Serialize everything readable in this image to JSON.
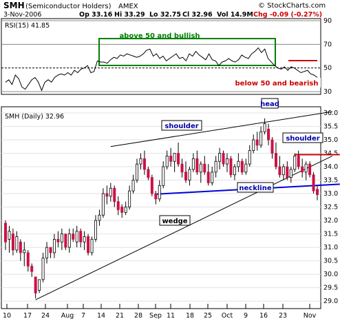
{
  "header": {
    "symbol": "SMH",
    "name": "(Semiconductor Holders)",
    "exchange": "AMEX",
    "copyright": "© StockCharts.com",
    "date": "3-Nov-2006",
    "open": "Op 33.16",
    "high": "Hi 33.29",
    "low": "Lo 32.75",
    "close": "Cl 32.96",
    "volume": "Vol 14.9M",
    "change": "Chg -0.09 (-0.27%)",
    "change_color": "#cc0000"
  },
  "rsi_panel": {
    "label": "RSI(15) 41.85",
    "y_ticks": [
      "90",
      "70",
      "50",
      "30"
    ],
    "bullish_note": "above 50 and bullish",
    "bearish_note": "below 50 and bearish",
    "box_color": "#008000",
    "bearish_color": "#cc0000"
  },
  "price_panel": {
    "label": "SMH (Daily) 32.96",
    "y_ticks": [
      "36.0",
      "35.5",
      "35.0",
      "34.5",
      "34.0",
      "33.5",
      "33.0",
      "32.5",
      "32.0",
      "31.5",
      "31.0",
      "30.5",
      "30.0",
      "29.5",
      "29.0"
    ],
    "annotations": {
      "head": "head",
      "left_shoulder": "shoulder",
      "right_shoulder": "shoulder",
      "neckline": "neckline",
      "wedge": "wedge"
    },
    "neckline_color": "#0000dd",
    "up_candle_color": "#ffffff",
    "down_candle_color": "#cc1144"
  },
  "x_axis": {
    "labels": [
      "10",
      "17",
      "24",
      "Aug",
      "7",
      "14",
      "21",
      "28",
      "Sep",
      "11",
      "18",
      "25",
      "Oct",
      "9",
      "16",
      "23",
      "Nov"
    ]
  },
  "chart_data": [
    {
      "type": "line",
      "title": "RSI(15) 41.85",
      "ylim": [
        30,
        90
      ],
      "yticks": [
        30,
        50,
        70,
        90
      ],
      "grid": true,
      "values": [
        38,
        40,
        36,
        44,
        41,
        34,
        32,
        36,
        40,
        42,
        38,
        31,
        38,
        40,
        38,
        42,
        44,
        45,
        44,
        46,
        44,
        48,
        46,
        49,
        50,
        52,
        46,
        47,
        56,
        55,
        55,
        54,
        57,
        59,
        58,
        61,
        60,
        62,
        61,
        60,
        59,
        60,
        62,
        65,
        66,
        60,
        62,
        58,
        60,
        56,
        58,
        60,
        62,
        58,
        59,
        56,
        62,
        60,
        64,
        61,
        59,
        57,
        62,
        57,
        56,
        52,
        55,
        56,
        58,
        56,
        55,
        57,
        61,
        59,
        58,
        62,
        64,
        67,
        63,
        66,
        58,
        55,
        52,
        50,
        49,
        51,
        48,
        51,
        50,
        48,
        46,
        47,
        48,
        45,
        44,
        42
      ],
      "annotations": [
        "above 50 and bullish",
        "below 50 and bearish"
      ]
    },
    {
      "type": "candlestick",
      "title": "SMH (Daily) 32.96",
      "ylim": [
        28.9,
        36.0
      ],
      "yticks": [
        29.0,
        29.5,
        30.0,
        30.5,
        31.0,
        31.5,
        32.0,
        32.5,
        33.0,
        33.5,
        34.0,
        34.5,
        35.0,
        35.5,
        36.0
      ],
      "x_labels": [
        "10",
        "17",
        "24",
        "Aug",
        "7",
        "14",
        "21",
        "28",
        "Sep",
        "11",
        "18",
        "25",
        "Oct",
        "9",
        "16",
        "23",
        "Nov"
      ],
      "ohlc": [
        [
          31.9,
          32.0,
          30.9,
          31.2
        ],
        [
          31.3,
          31.8,
          30.8,
          31.6
        ],
        [
          31.5,
          31.7,
          30.7,
          30.9
        ],
        [
          30.9,
          31.6,
          30.8,
          31.4
        ],
        [
          31.2,
          31.3,
          30.5,
          30.8
        ],
        [
          30.8,
          31.2,
          30.3,
          30.9
        ],
        [
          30.8,
          30.9,
          30.1,
          30.3
        ],
        [
          30.3,
          30.4,
          29.9,
          30.1
        ],
        [
          29.9,
          29.9,
          29.1,
          29.3
        ],
        [
          29.4,
          29.8,
          29.3,
          29.8
        ],
        [
          29.8,
          30.8,
          29.7,
          30.6
        ],
        [
          30.6,
          31.2,
          30.4,
          31.0
        ],
        [
          31.0,
          31.0,
          30.6,
          30.8
        ],
        [
          30.8,
          31.5,
          30.6,
          31.3
        ],
        [
          31.3,
          31.6,
          31.0,
          31.2
        ],
        [
          31.2,
          31.7,
          30.9,
          31.5
        ],
        [
          31.5,
          31.5,
          30.9,
          31.0
        ],
        [
          31.0,
          31.7,
          30.8,
          31.5
        ],
        [
          31.5,
          31.7,
          31.2,
          31.3
        ],
        [
          31.2,
          31.8,
          31.0,
          31.6
        ],
        [
          31.6,
          31.7,
          31.0,
          31.2
        ],
        [
          31.2,
          31.6,
          30.9,
          31.4
        ],
        [
          31.4,
          31.5,
          30.7,
          30.8
        ],
        [
          30.8,
          31.4,
          30.7,
          31.3
        ],
        [
          31.3,
          32.2,
          31.2,
          32.0
        ],
        [
          32.0,
          32.4,
          31.8,
          32.2
        ],
        [
          32.2,
          33.2,
          32.1,
          33.0
        ],
        [
          33.0,
          33.3,
          32.6,
          32.9
        ],
        [
          32.9,
          33.4,
          32.7,
          33.2
        ],
        [
          33.2,
          33.3,
          32.5,
          32.7
        ],
        [
          32.7,
          32.9,
          32.2,
          32.4
        ],
        [
          32.5,
          32.6,
          32.1,
          32.3
        ],
        [
          32.3,
          32.7,
          32.2,
          32.5
        ],
        [
          32.5,
          33.3,
          32.4,
          33.1
        ],
        [
          33.1,
          33.7,
          33.0,
          33.5
        ],
        [
          33.5,
          34.3,
          33.4,
          34.1
        ],
        [
          34.1,
          34.5,
          33.9,
          34.3
        ],
        [
          34.3,
          34.6,
          33.7,
          33.9
        ],
        [
          33.9,
          34.0,
          33.5,
          33.6
        ],
        [
          33.6,
          33.7,
          32.9,
          33.0
        ],
        [
          33.0,
          33.1,
          32.6,
          32.8
        ],
        [
          32.8,
          33.5,
          32.7,
          33.3
        ],
        [
          33.3,
          34.2,
          33.2,
          34.0
        ],
        [
          34.0,
          34.6,
          33.9,
          34.4
        ],
        [
          34.4,
          34.7,
          34.0,
          34.2
        ],
        [
          34.2,
          34.5,
          33.8,
          34.5
        ],
        [
          34.5,
          34.9,
          34.0,
          34.1
        ],
        [
          34.1,
          34.3,
          33.6,
          33.8
        ],
        [
          33.8,
          34.2,
          33.4,
          33.5
        ],
        [
          33.5,
          34.0,
          33.3,
          33.9
        ],
        [
          33.9,
          34.5,
          33.8,
          34.3
        ],
        [
          34.3,
          34.6,
          33.7,
          33.8
        ],
        [
          33.8,
          34.2,
          33.4,
          34.1
        ],
        [
          34.1,
          34.4,
          33.7,
          33.8
        ],
        [
          33.8,
          34.1,
          33.3,
          33.4
        ],
        [
          33.4,
          34.0,
          33.3,
          33.8
        ],
        [
          33.8,
          34.4,
          33.6,
          34.2
        ],
        [
          34.2,
          34.7,
          33.9,
          34.5
        ],
        [
          34.5,
          34.6,
          34.0,
          34.1
        ],
        [
          34.1,
          34.5,
          33.8,
          34.3
        ],
        [
          34.3,
          34.4,
          33.6,
          33.7
        ],
        [
          33.7,
          34.1,
          33.5,
          34.0
        ],
        [
          34.0,
          34.5,
          33.8,
          34.2
        ],
        [
          34.2,
          34.3,
          33.7,
          33.8
        ],
        [
          33.8,
          34.3,
          33.7,
          34.1
        ],
        [
          34.1,
          34.8,
          34.0,
          34.6
        ],
        [
          34.6,
          35.2,
          34.5,
          35.0
        ],
        [
          35.0,
          35.3,
          34.6,
          34.8
        ],
        [
          34.8,
          35.5,
          34.7,
          35.3
        ],
        [
          35.3,
          35.8,
          35.2,
          35.6
        ],
        [
          35.4,
          35.6,
          34.8,
          35.0
        ],
        [
          35.0,
          35.1,
          34.3,
          34.5
        ],
        [
          34.5,
          34.9,
          33.9,
          34.0
        ],
        [
          34.0,
          34.4,
          33.6,
          33.7
        ],
        [
          33.7,
          34.1,
          33.5,
          34.0
        ],
        [
          34.0,
          34.2,
          33.5,
          33.6
        ],
        [
          33.6,
          34.0,
          33.4,
          33.9
        ],
        [
          33.9,
          34.5,
          33.8,
          34.4
        ],
        [
          34.4,
          34.6,
          33.9,
          34.0
        ],
        [
          34.0,
          34.3,
          33.6,
          33.8
        ],
        [
          33.8,
          34.2,
          33.5,
          34.1
        ],
        [
          34.1,
          34.2,
          33.6,
          33.7
        ],
        [
          33.7,
          33.8,
          33.0,
          33.1
        ],
        [
          33.16,
          33.29,
          32.75,
          32.96
        ]
      ],
      "trendlines": {
        "wedge_upper": [
          [
            28,
            34.75
          ],
          [
            87,
            36.05
          ]
        ],
        "wedge_lower": [
          [
            8,
            29.05
          ],
          [
            87,
            34.4
          ]
        ],
        "neckline": [
          [
            40,
            32.98
          ],
          [
            89,
            33.35
          ]
        ],
        "rsi_resistance_level": 35.15,
        "right_shoulder_level": 34.45
      },
      "annotations": [
        "head",
        "shoulder",
        "shoulder",
        "neckline",
        "wedge"
      ]
    }
  ]
}
